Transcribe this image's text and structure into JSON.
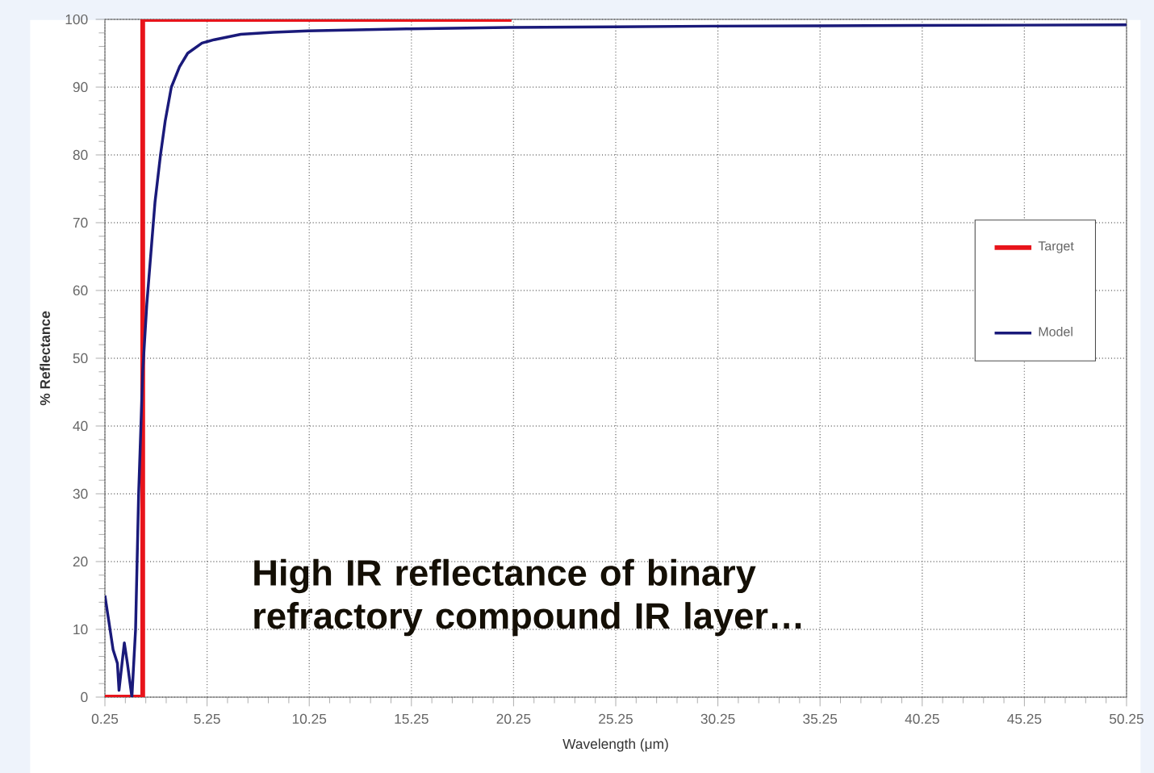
{
  "chart_data": {
    "type": "line",
    "xlabel": "Wavelength (μm)",
    "ylabel": "% Reflectance",
    "annotations": [
      "High IR reflectance of binary refractory compound IR layer…"
    ],
    "series": [
      {
        "name": "Target",
        "color": "#e8141b",
        "x": [
          0.25,
          2.1,
          2.1,
          20.15
        ],
        "values": [
          0,
          0,
          100,
          100
        ]
      },
      {
        "name": "Model",
        "color": "#1a1a7a",
        "x": [
          0.25,
          0.45,
          0.65,
          0.86,
          0.94,
          1.05,
          1.2,
          1.35,
          1.57,
          1.75,
          1.9,
          2.1,
          2.3,
          2.46,
          2.7,
          2.97,
          3.2,
          3.5,
          3.9,
          4.3,
          5,
          5.6,
          6.9,
          8.5,
          10.2,
          15,
          20,
          30,
          40,
          50.25
        ],
        "values": [
          15,
          11,
          7,
          5,
          1,
          4,
          8,
          5,
          0,
          10,
          30,
          48,
          58,
          64,
          73,
          80,
          85,
          90,
          93,
          95,
          96.5,
          97,
          97.8,
          98.1,
          98.3,
          98.6,
          98.8,
          99,
          99.1,
          99.2
        ]
      }
    ],
    "xlim": [
      0.25,
      50.25
    ],
    "ylim": [
      0,
      100
    ],
    "xticks": [
      0.25,
      5.25,
      10.25,
      15.25,
      20.25,
      25.25,
      30.25,
      35.25,
      40.25,
      45.25,
      50.25
    ],
    "yticks": [
      0,
      10,
      20,
      30,
      40,
      50,
      60,
      70,
      80,
      90,
      100
    ],
    "grid": true,
    "legend": "right",
    "marker": "none",
    "line_style": "solid"
  }
}
